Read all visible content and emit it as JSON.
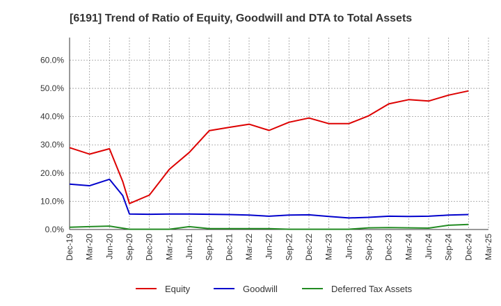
{
  "chart_data": {
    "type": "line",
    "title": "[6191]  Trend of Ratio of Equity, Goodwill and DTA to Total Assets",
    "xlabel": "",
    "ylabel": "",
    "categories": [
      "Dec-19",
      "Mar-20",
      "Jun-20",
      "Sep-20",
      "Dec-20",
      "Mar-21",
      "Jun-21",
      "Sep-21",
      "Dec-21",
      "Mar-22",
      "Jun-22",
      "Sep-22",
      "Dec-22",
      "Mar-23",
      "Jun-23",
      "Sep-23",
      "Dec-23",
      "Mar-24",
      "Jun-24",
      "Sep-24",
      "Dec-24",
      "Mar-25"
    ],
    "ylim": [
      0,
      0.68
    ],
    "yticks": [
      0.0,
      0.1,
      0.2,
      0.3,
      0.4,
      0.5,
      0.6
    ],
    "ytick_labels": [
      "0.0%",
      "10.0%",
      "20.0%",
      "30.0%",
      "40.0%",
      "50.0%",
      "60.0%"
    ],
    "grid": true,
    "legend_position": "bottom",
    "series": [
      {
        "name": "Equity",
        "color": "#dd0000",
        "points": [
          {
            "x": "Dec-19",
            "y": 0.29
          },
          {
            "x": "Mar-20",
            "y": 0.267
          },
          {
            "x": "Jun-20",
            "y": 0.286
          },
          {
            "x": "2020-08",
            "y": 0.17
          },
          {
            "x": "Sep-20",
            "y": 0.092
          },
          {
            "x": "Dec-20",
            "y": 0.122
          },
          {
            "x": "Mar-21",
            "y": 0.213
          },
          {
            "x": "Jun-21",
            "y": 0.273
          },
          {
            "x": "Sep-21",
            "y": 0.35
          },
          {
            "x": "Dec-21",
            "y": 0.362
          },
          {
            "x": "Mar-22",
            "y": 0.373
          },
          {
            "x": "Jun-22",
            "y": 0.351
          },
          {
            "x": "Sep-22",
            "y": 0.38
          },
          {
            "x": "Dec-22",
            "y": 0.395
          },
          {
            "x": "Mar-23",
            "y": 0.375
          },
          {
            "x": "Jun-23",
            "y": 0.375
          },
          {
            "x": "Sep-23",
            "y": 0.403
          },
          {
            "x": "Dec-23",
            "y": 0.445
          },
          {
            "x": "Mar-24",
            "y": 0.46
          },
          {
            "x": "Jun-24",
            "y": 0.455
          },
          {
            "x": "Sep-24",
            "y": 0.476
          },
          {
            "x": "Dec-24",
            "y": 0.491
          }
        ]
      },
      {
        "name": "Goodwill",
        "color": "#0000cc",
        "points": [
          {
            "x": "Dec-19",
            "y": 0.161
          },
          {
            "x": "Mar-20",
            "y": 0.155
          },
          {
            "x": "Jun-20",
            "y": 0.178
          },
          {
            "x": "2020-08",
            "y": 0.12
          },
          {
            "x": "Sep-20",
            "y": 0.055
          },
          {
            "x": "Dec-20",
            "y": 0.054
          },
          {
            "x": "Mar-21",
            "y": 0.055
          },
          {
            "x": "Jun-21",
            "y": 0.055
          },
          {
            "x": "Sep-21",
            "y": 0.054
          },
          {
            "x": "Dec-21",
            "y": 0.053
          },
          {
            "x": "Mar-22",
            "y": 0.051
          },
          {
            "x": "Jun-22",
            "y": 0.047
          },
          {
            "x": "Sep-22",
            "y": 0.051
          },
          {
            "x": "Dec-22",
            "y": 0.052
          },
          {
            "x": "Mar-23",
            "y": 0.046
          },
          {
            "x": "Jun-23",
            "y": 0.041
          },
          {
            "x": "Sep-23",
            "y": 0.043
          },
          {
            "x": "Dec-23",
            "y": 0.047
          },
          {
            "x": "Mar-24",
            "y": 0.046
          },
          {
            "x": "Jun-24",
            "y": 0.047
          },
          {
            "x": "Sep-24",
            "y": 0.051
          },
          {
            "x": "Dec-24",
            "y": 0.053
          }
        ]
      },
      {
        "name": "Deferred Tax Assets",
        "color": "#228b22",
        "points": [
          {
            "x": "Dec-19",
            "y": 0.008
          },
          {
            "x": "Mar-20",
            "y": 0.01
          },
          {
            "x": "Jun-20",
            "y": 0.012
          },
          {
            "x": "Sep-20",
            "y": 0.001
          },
          {
            "x": "Dec-20",
            "y": 0.001
          },
          {
            "x": "Mar-21",
            "y": 0.001
          },
          {
            "x": "Jun-21",
            "y": 0.01
          },
          {
            "x": "Sep-21",
            "y": 0.003
          },
          {
            "x": "Dec-21",
            "y": 0.003
          },
          {
            "x": "Mar-22",
            "y": 0.003
          },
          {
            "x": "Jun-22",
            "y": 0.003
          },
          {
            "x": "Sep-22",
            "y": 0.001
          },
          {
            "x": "Dec-22",
            "y": 0.001
          },
          {
            "x": "Mar-23",
            "y": 0.001
          },
          {
            "x": "Jun-23",
            "y": 0.001
          },
          {
            "x": "Sep-23",
            "y": 0.006
          },
          {
            "x": "Dec-23",
            "y": 0.007
          },
          {
            "x": "Mar-24",
            "y": 0.006
          },
          {
            "x": "Jun-24",
            "y": 0.005
          },
          {
            "x": "Sep-24",
            "y": 0.015
          },
          {
            "x": "Dec-24",
            "y": 0.018
          }
        ]
      }
    ]
  }
}
